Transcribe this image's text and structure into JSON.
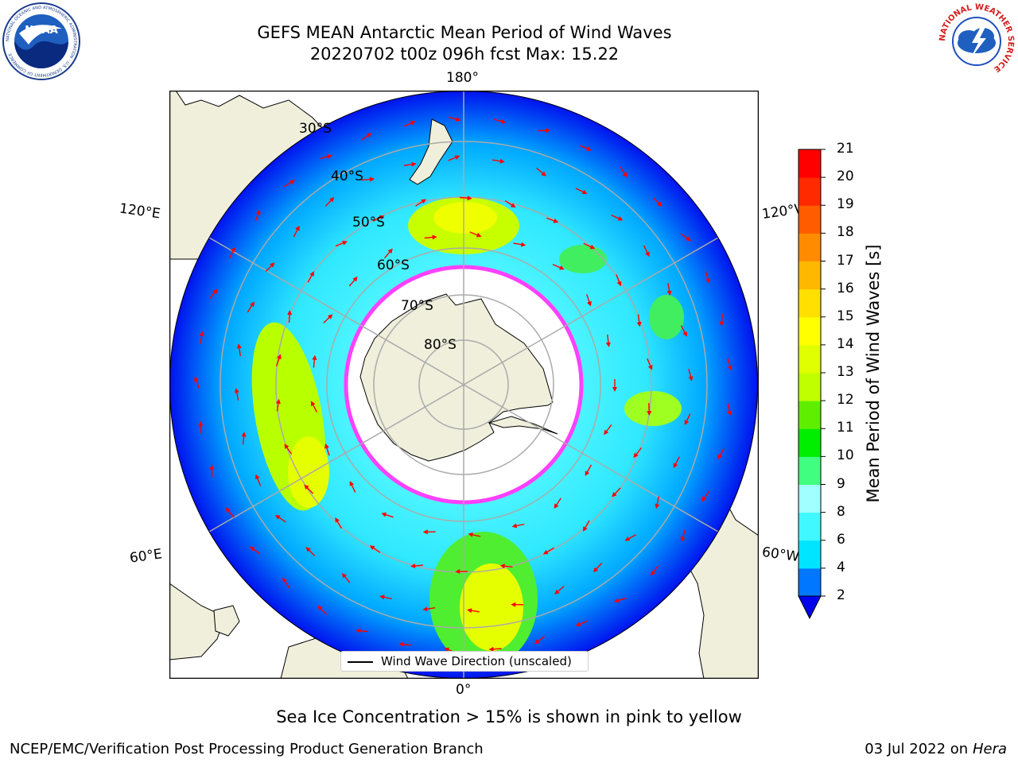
{
  "title": {
    "line1": "GEFS MEAN Antarctic Mean Period of Wind Waves",
    "line2": "20220702 t00z 096h fcst   Max: 15.22"
  },
  "map": {
    "projection": "south-polar-stereographic",
    "longitude_labels": [
      "180°",
      "120°E",
      "120°W",
      "60°E",
      "60°W",
      "0°"
    ],
    "latitude_labels": [
      "30°S",
      "40°S",
      "50°S",
      "60°S",
      "70°S",
      "80°S"
    ],
    "land_color": "#efefdc",
    "ice_edge_color": "#ff40ff",
    "arrow_color": "#ff0000"
  },
  "legend": {
    "label": "Wind Wave Direction (unscaled)"
  },
  "colorbar": {
    "title": "Mean Period of Wind Waves [s]",
    "ticks": [
      "2",
      "4",
      "6",
      "8",
      "9",
      "10",
      "11",
      "12",
      "13",
      "14",
      "15",
      "16",
      "17",
      "18",
      "19",
      "20",
      "21"
    ],
    "colors": [
      "#0077ff",
      "#00e5ff",
      "#40f8ff",
      "#a0ffff",
      "#40ff80",
      "#00ee00",
      "#60ee00",
      "#c0ff00",
      "#e0ff00",
      "#ffff00",
      "#ffe000",
      "#ffb800",
      "#ff8c00",
      "#ff5c00",
      "#ff2a00",
      "#ff0000"
    ],
    "under_color": "#0000ee"
  },
  "caption": "Sea Ice Concentration > 15% is shown in pink to yellow",
  "footer": {
    "left": "NCEP/EMC/Verification Post Processing Product Generation Branch",
    "right_prefix": "03 Jul 2022 on ",
    "right_host": "Hera"
  },
  "logos": {
    "noaa": {
      "text": "NOAA",
      "ring": "NATIONAL OCEANIC AND ATMOSPHERIC ADMINISTRATION · U.S. DEPARTMENT OF COMMERCE"
    },
    "nws": {
      "ring": "NATIONAL WEATHER SERVICE"
    }
  }
}
